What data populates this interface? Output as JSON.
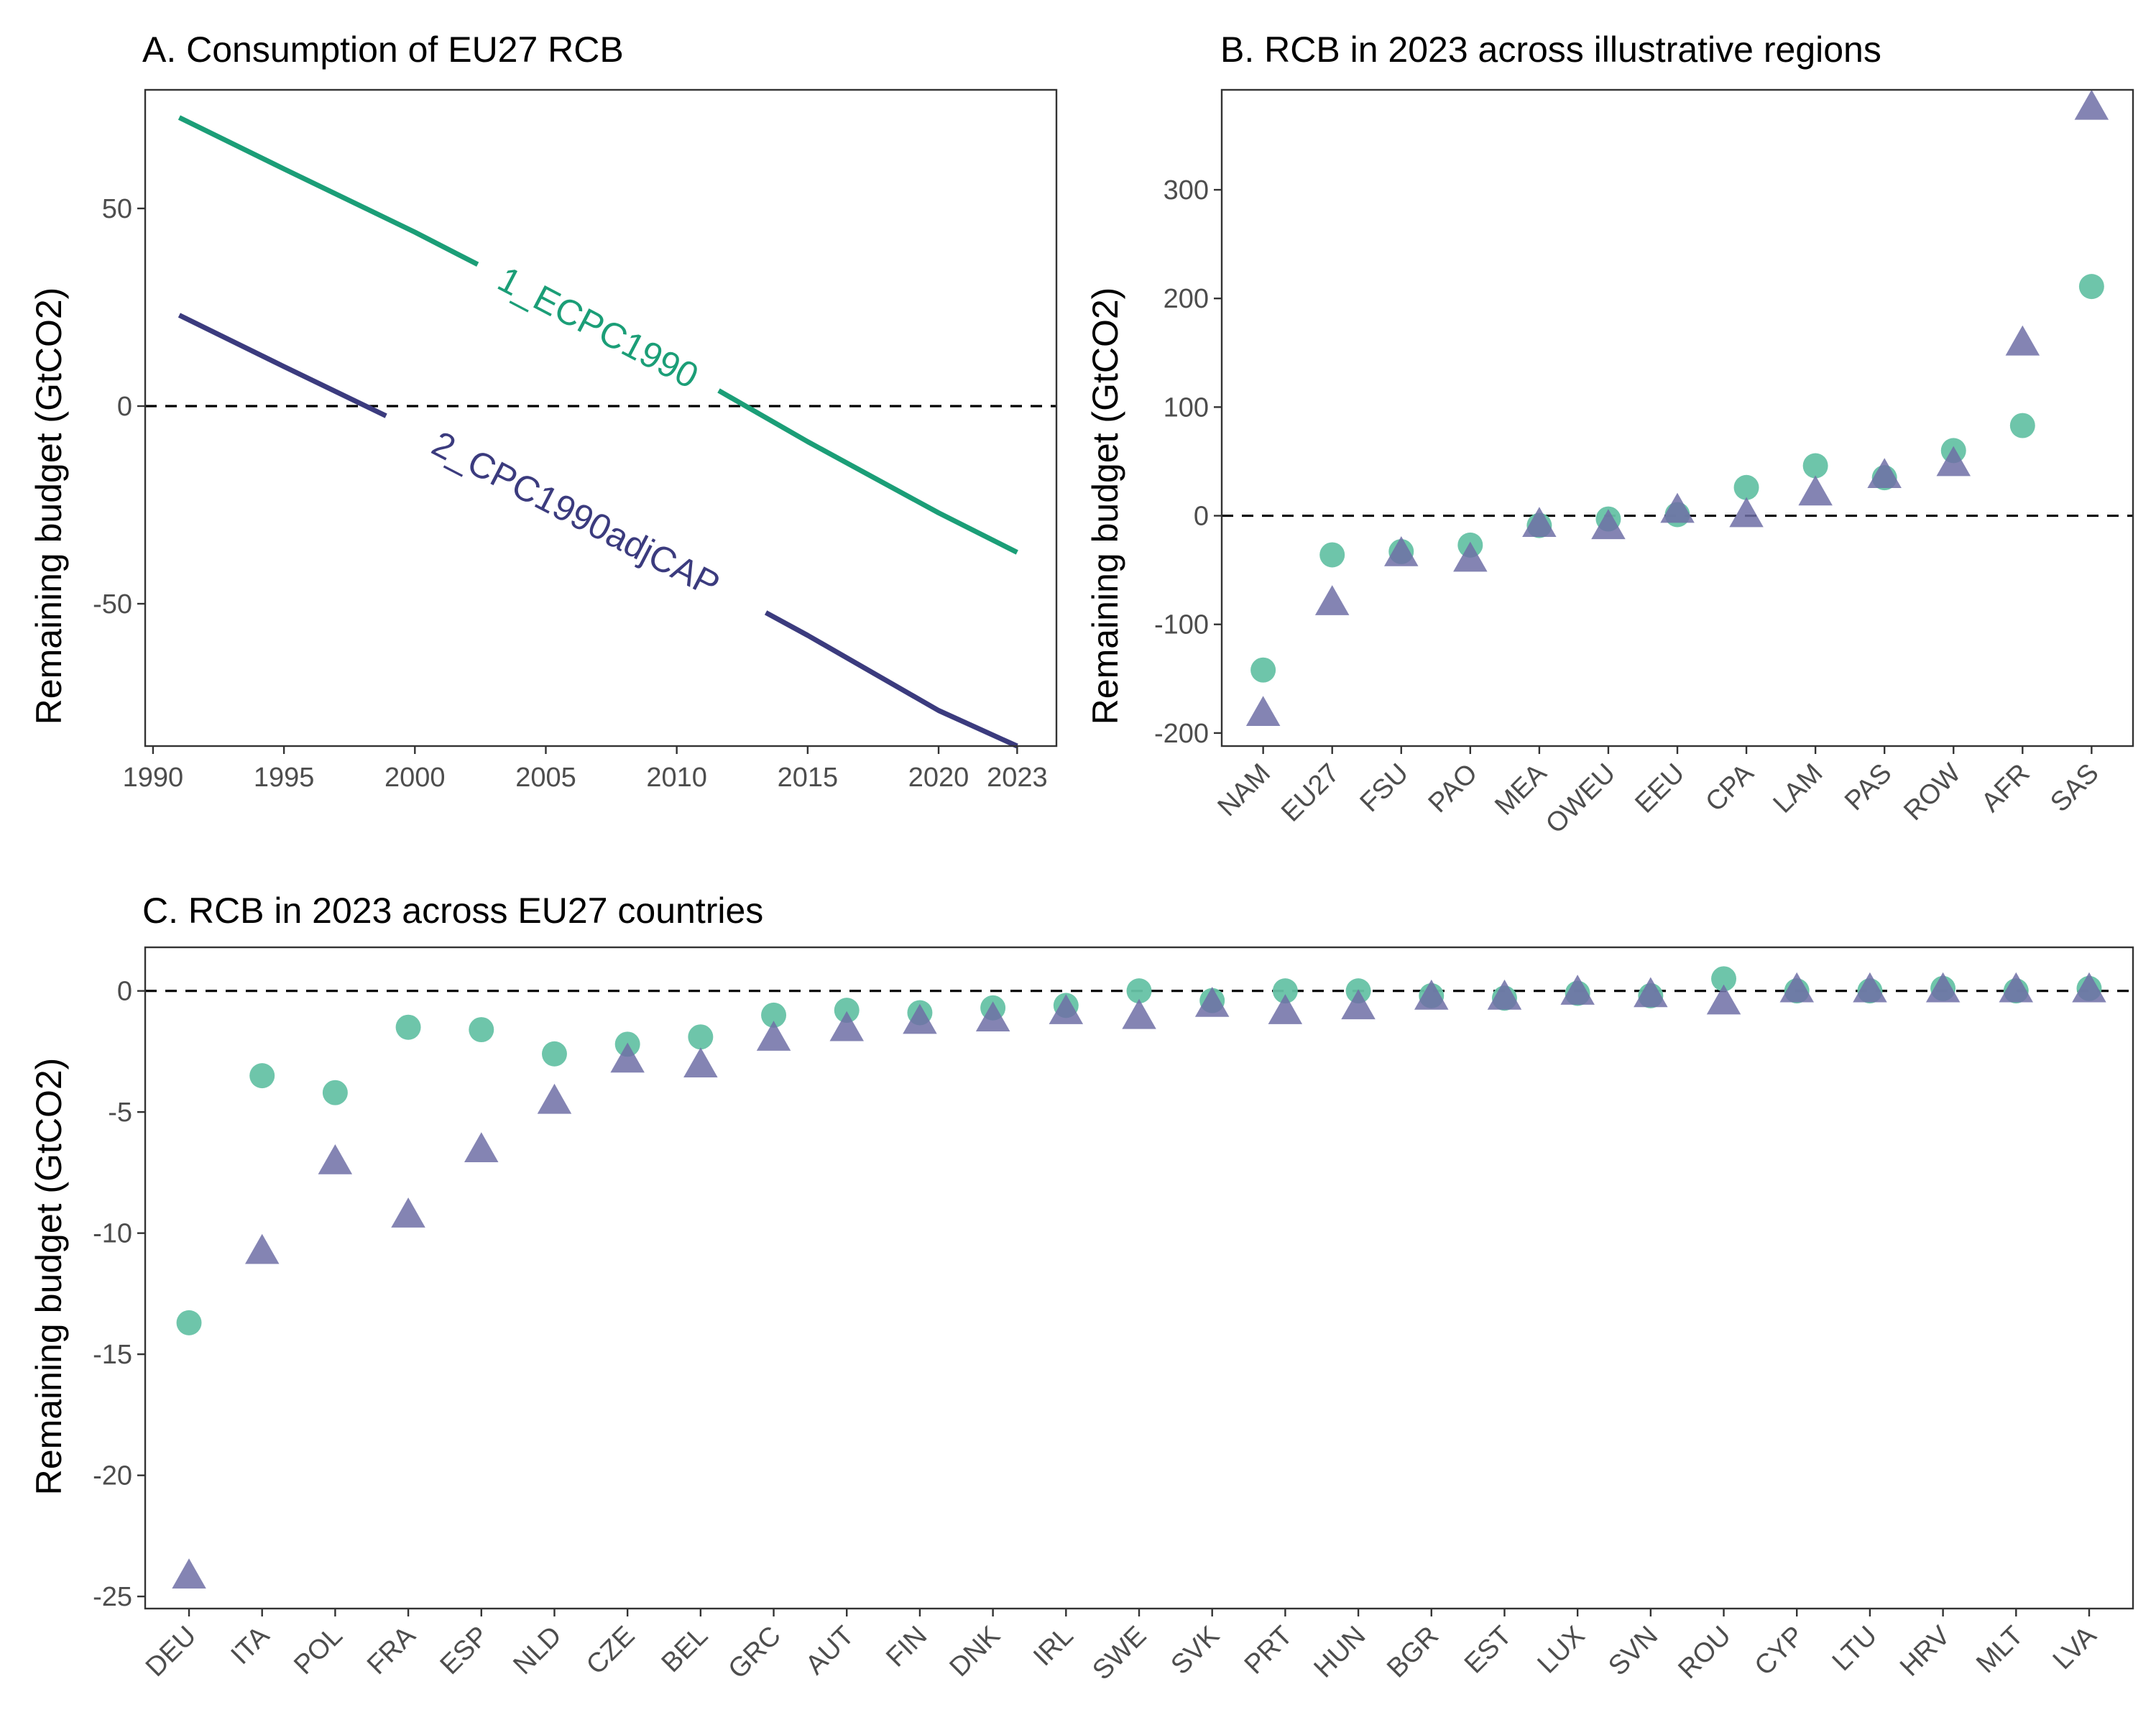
{
  "colors": {
    "ecpc": "#1b9e77",
    "cpc": "#3b3b7e",
    "ecpc_point": "#66c2a5",
    "cpc_point": "#6f6fa6"
  },
  "chart_data": [
    {
      "id": "A",
      "type": "line",
      "title": "A. Consumption of EU27 RCB",
      "xlabel": "",
      "ylabel": "Remaining budget (GtCO2)",
      "xlim": [
        1989.7,
        2024.5
      ],
      "ylim": [
        -86,
        80
      ],
      "xticks": [
        1990,
        1995,
        2000,
        2005,
        2010,
        2015,
        2020,
        2023
      ],
      "yticks": [
        -50,
        0,
        50
      ],
      "reference_line": 0,
      "series": [
        {
          "name": "1_ECPC1990",
          "color": "#1b9e77",
          "x": [
            1991,
            1995,
            2000,
            2005,
            2010,
            2015,
            2020,
            2023
          ],
          "y": [
            73,
            60,
            44,
            27,
            10,
            -9,
            -27,
            -37
          ]
        },
        {
          "name": "2_CPC1990adjCAP",
          "color": "#3b3b7e",
          "x": [
            1991,
            1995,
            2000,
            2005,
            2010,
            2015,
            2020,
            2023
          ],
          "y": [
            23,
            10,
            -6,
            -22,
            -40,
            -58,
            -77,
            -86
          ]
        }
      ]
    },
    {
      "id": "B",
      "type": "scatter",
      "title": "B. RCB in 2023 across illustrative regions",
      "xlabel": "",
      "ylabel": "Remaining budget (GtCO2)",
      "ylim": [
        -212,
        392
      ],
      "yticks": [
        -200,
        -100,
        0,
        100,
        200,
        300
      ],
      "reference_line": 0,
      "categories": [
        "NAM",
        "EU27",
        "FSU",
        "PAO",
        "MEA",
        "OWEU",
        "EEU",
        "CPA",
        "LAM",
        "PAS",
        "ROW",
        "AFR",
        "SAS"
      ],
      "series": [
        {
          "marker": "circle",
          "color": "#66c2a5",
          "values": [
            -142,
            -36,
            -33,
            -27,
            -9,
            -3,
            1,
            26,
            46,
            35,
            60,
            83,
            211
          ]
        },
        {
          "marker": "triangle",
          "color": "#6f6fa6",
          "values": [
            -183,
            -81,
            -36,
            -41,
            -9,
            -11,
            4,
            0,
            20,
            36,
            47,
            158,
            375
          ]
        }
      ]
    },
    {
      "id": "C",
      "type": "scatter",
      "title": "C. RCB in 2023 across EU27 countries",
      "xlabel": "",
      "ylabel": "Remaining budget (GtCO2)",
      "ylim": [
        -25.5,
        1.8
      ],
      "yticks": [
        -25,
        -20,
        -15,
        -10,
        -5,
        0
      ],
      "reference_line": 0,
      "categories": [
        "DEU",
        "ITA",
        "POL",
        "FRA",
        "ESP",
        "NLD",
        "CZE",
        "BEL",
        "GRC",
        "AUT",
        "FIN",
        "DNK",
        "IRL",
        "SWE",
        "SVK",
        "PRT",
        "HUN",
        "BGR",
        "EST",
        "LUX",
        "SVN",
        "ROU",
        "CYP",
        "LTU",
        "HRV",
        "MLT",
        "LVA"
      ],
      "series": [
        {
          "marker": "circle",
          "color": "#66c2a5",
          "values": [
            -13.7,
            -3.5,
            -4.2,
            -1.5,
            -1.6,
            -2.6,
            -2.2,
            -1.9,
            -1.0,
            -0.8,
            -0.9,
            -0.7,
            -0.6,
            0.0,
            -0.4,
            0.0,
            0.0,
            -0.2,
            -0.3,
            -0.1,
            -0.2,
            0.5,
            0.0,
            0.0,
            0.1,
            0.0,
            0.1
          ]
        },
        {
          "marker": "triangle",
          "color": "#6f6fa6",
          "values": [
            -24.2,
            -10.8,
            -7.1,
            -9.3,
            -6.6,
            -4.6,
            -2.9,
            -3.1,
            -2.0,
            -1.6,
            -1.3,
            -1.2,
            -0.9,
            -1.1,
            -0.6,
            -0.9,
            -0.7,
            -0.3,
            -0.3,
            -0.1,
            -0.2,
            -0.5,
            0.0,
            0.0,
            0.0,
            0.0,
            0.0
          ]
        }
      ]
    }
  ]
}
